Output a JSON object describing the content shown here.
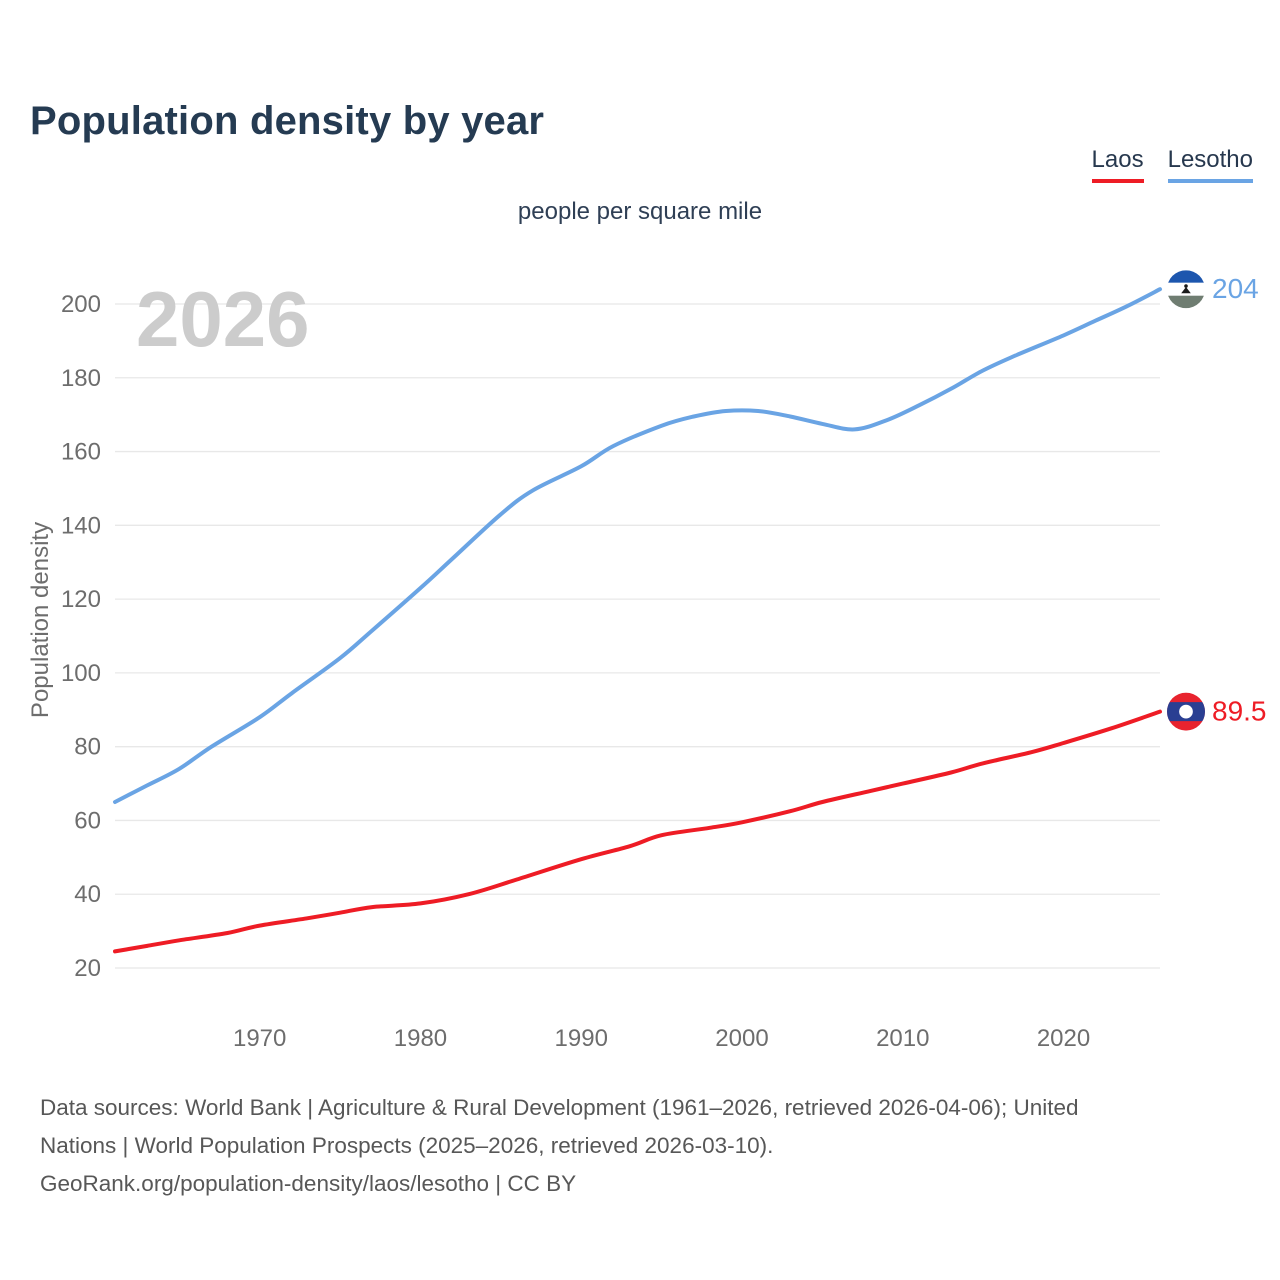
{
  "title": "Population density by year",
  "subtitle": "people per square mile",
  "watermark": "2026",
  "legend": [
    {
      "label": "Laos",
      "color": "#ee1c25"
    },
    {
      "label": "Lesotho",
      "color": "#6aa4e4"
    }
  ],
  "footer": {
    "lines": [
      "Data sources: World Bank | Agriculture & Rural Development (1961–2026, retrieved 2026-04-06); United",
      "Nations | World Population Prospects (2025–2026, retrieved 2026-03-10).",
      "GeoRank.org/population-density/laos/lesotho | CC BY"
    ]
  },
  "colors": {
    "title_text": "#253b52",
    "axis_text": "#6d6d6d",
    "gridline": "#e8e8e8",
    "watermark": "#cccccc",
    "laos_red": "#ee1c25",
    "lesotho_blue": "#6aa4e4"
  },
  "flags": {
    "laos": {
      "icon": "laos-flag-icon",
      "red": "#e8232e",
      "blue": "#2a3f92",
      "disc": "#ffffff"
    },
    "lesotho": {
      "icon": "lesotho-flag-icon",
      "blue": "#1d56ae",
      "white": "#ffffff",
      "green": "#6f7d71",
      "hat": "#1a1a1a"
    }
  },
  "chart_data": {
    "type": "line",
    "title": "Population density by year",
    "subtitle_unit": "people per square mile",
    "xlabel": "",
    "ylabel": "Population density",
    "xlim": [
      1961,
      2026
    ],
    "ylim": [
      20,
      200
    ],
    "x_ticks": [
      1970,
      1980,
      1990,
      2000,
      2010,
      2020
    ],
    "y_ticks": [
      20,
      40,
      60,
      80,
      100,
      120,
      140,
      160,
      180,
      200
    ],
    "grid": true,
    "legend_position": "top-right",
    "watermark_year": "2026",
    "series": [
      {
        "name": "Laos",
        "color": "#ee1c25",
        "end_label": "89.5",
        "end_value": 89.5,
        "icon": "laos-flag-icon",
        "points": [
          [
            1961,
            24.5
          ],
          [
            1963,
            26
          ],
          [
            1965,
            27.5
          ],
          [
            1968,
            29.5
          ],
          [
            1970,
            31.5
          ],
          [
            1973,
            33.5
          ],
          [
            1975,
            35
          ],
          [
            1977,
            36.5
          ],
          [
            1980,
            37.5
          ],
          [
            1983,
            40
          ],
          [
            1986,
            44
          ],
          [
            1990,
            49.5
          ],
          [
            1993,
            53
          ],
          [
            1995,
            56
          ],
          [
            1998,
            58
          ],
          [
            2000,
            59.5
          ],
          [
            2003,
            62.5
          ],
          [
            2005,
            65
          ],
          [
            2008,
            68
          ],
          [
            2010,
            70
          ],
          [
            2013,
            73
          ],
          [
            2015,
            75.5
          ],
          [
            2018,
            78.5
          ],
          [
            2020,
            81
          ],
          [
            2023,
            85
          ],
          [
            2026,
            89.5
          ]
        ]
      },
      {
        "name": "Lesotho",
        "color": "#6aa4e4",
        "end_label": "204",
        "end_value": 204,
        "icon": "lesotho-flag-icon",
        "points": [
          [
            1961,
            65
          ],
          [
            1963,
            69.5
          ],
          [
            1965,
            74
          ],
          [
            1967,
            80
          ],
          [
            1970,
            88
          ],
          [
            1972,
            94.5
          ],
          [
            1975,
            104
          ],
          [
            1977,
            111.5
          ],
          [
            1980,
            123
          ],
          [
            1982,
            131
          ],
          [
            1985,
            143
          ],
          [
            1987,
            149.5
          ],
          [
            1990,
            156
          ],
          [
            1992,
            161.5
          ],
          [
            1995,
            167
          ],
          [
            1997,
            169.5
          ],
          [
            1999,
            171
          ],
          [
            2001,
            171
          ],
          [
            2003,
            169.5
          ],
          [
            2005,
            167.5
          ],
          [
            2007,
            166
          ],
          [
            2009,
            168.5
          ],
          [
            2011,
            172.5
          ],
          [
            2013,
            177
          ],
          [
            2015,
            182
          ],
          [
            2017,
            186
          ],
          [
            2020,
            191.5
          ],
          [
            2022,
            195.5
          ],
          [
            2024,
            199.5
          ],
          [
            2026,
            204
          ]
        ]
      }
    ]
  }
}
